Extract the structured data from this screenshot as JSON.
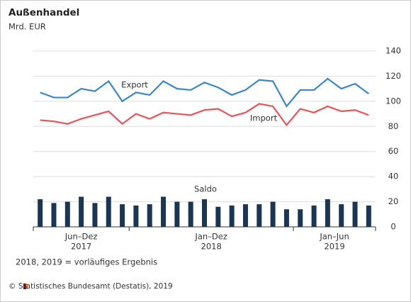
{
  "chart_data": {
    "type": "line-bar",
    "title": "Außenhandel",
    "subtitle": "Mrd. EUR",
    "categories": [
      null,
      null,
      null,
      null,
      null,
      null,
      null,
      null,
      null,
      null,
      null,
      null,
      null,
      null,
      null,
      null,
      null,
      null,
      null,
      null,
      null,
      null,
      null,
      null,
      null
    ],
    "groups": [
      {
        "label": "Jun–Dez",
        "sublabel": "2017",
        "count": 7
      },
      {
        "label": "Jan–Dez",
        "sublabel": "2018",
        "count": 12
      },
      {
        "label": "Jan–Jun",
        "sublabel": "2019",
        "count": 6
      }
    ],
    "series": [
      {
        "name": "Export",
        "type": "line",
        "color": "#3a86c8",
        "values": [
          107,
          103,
          103,
          110,
          108,
          116,
          100,
          107,
          105,
          116,
          110,
          109,
          115,
          111,
          105,
          109,
          117,
          116,
          96,
          109,
          109,
          118,
          110,
          114,
          106
        ]
      },
      {
        "name": "Import",
        "type": "line",
        "color": "#e8535a",
        "values": [
          85,
          84,
          82,
          86,
          89,
          92,
          82,
          90,
          86,
          91,
          90,
          89,
          93,
          94,
          88,
          91,
          98,
          96,
          81,
          94,
          91,
          96,
          92,
          93,
          89
        ]
      },
      {
        "name": "Saldo",
        "type": "bar",
        "color": "#1b3654",
        "values": [
          22,
          19,
          20,
          24,
          19,
          24,
          18,
          17,
          18,
          24,
          20,
          20,
          22,
          16,
          17,
          18,
          18,
          20,
          14,
          14,
          17,
          22,
          18,
          20,
          17
        ]
      }
    ],
    "ylim": [
      0,
      140
    ],
    "yticks": [
      0,
      20,
      40,
      60,
      80,
      100,
      120,
      140
    ],
    "grid": true,
    "footnote": "2018, 2019 = vorläufiges Ergebnis",
    "source": "© Statistisches Bundesamt (Destatis), 2019"
  }
}
